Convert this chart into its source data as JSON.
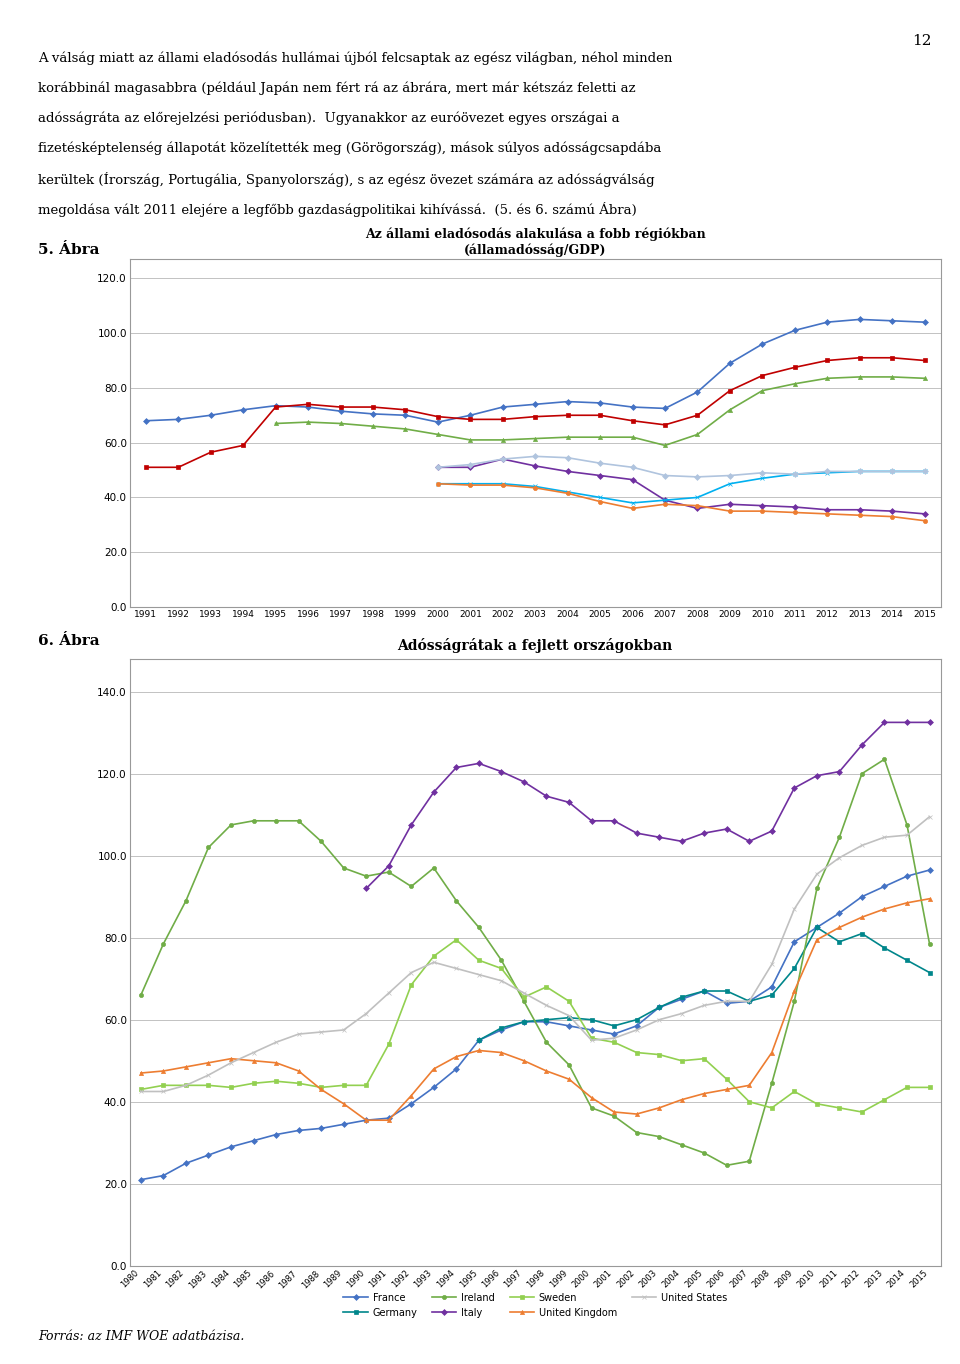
{
  "page_number": "12",
  "chart1_title": "Az állami eladósodás alakulása a fobb régiókban",
  "chart1_subtitle": "(államadósság/GDP)",
  "chart1_years": [
    1991,
    1992,
    1993,
    1994,
    1995,
    1996,
    1997,
    1998,
    1999,
    2000,
    2001,
    2002,
    2003,
    2004,
    2005,
    2006,
    2007,
    2008,
    2009,
    2010,
    2011,
    2012,
    2013,
    2014,
    2015
  ],
  "c1_advanced": [
    68.0,
    68.5,
    70.0,
    72.0,
    73.5,
    73.0,
    71.5,
    70.5,
    70.0,
    67.5,
    70.0,
    73.0,
    74.0,
    75.0,
    74.5,
    73.0,
    72.5,
    78.5,
    89.0,
    96.0,
    101.0,
    104.0,
    105.0,
    104.5,
    104.0
  ],
  "c1_euroarea": [
    51.0,
    51.0,
    56.5,
    59.0,
    73.0,
    74.0,
    73.0,
    73.0,
    72.0,
    69.5,
    68.5,
    68.5,
    69.5,
    70.0,
    70.0,
    68.0,
    66.5,
    70.0,
    79.0,
    84.5,
    87.5,
    90.0,
    91.0,
    91.0,
    90.0
  ],
  "c1_eu": [
    null,
    null,
    null,
    null,
    67.0,
    67.5,
    67.0,
    66.0,
    65.0,
    63.0,
    61.0,
    61.0,
    61.5,
    62.0,
    62.0,
    62.0,
    59.0,
    63.0,
    72.0,
    79.0,
    81.5,
    83.5,
    84.0,
    84.0,
    83.5
  ],
  "c1_emerging": [
    null,
    null,
    null,
    null,
    null,
    null,
    null,
    null,
    null,
    51.0,
    51.0,
    54.0,
    51.5,
    49.5,
    48.0,
    46.5,
    39.0,
    36.0,
    37.5,
    37.0,
    36.5,
    35.5,
    35.5,
    35.0,
    34.0
  ],
  "c1_cee": [
    null,
    null,
    null,
    null,
    null,
    null,
    null,
    null,
    null,
    45.0,
    45.0,
    45.0,
    44.0,
    42.0,
    40.0,
    38.0,
    39.0,
    40.0,
    45.0,
    47.0,
    48.5,
    49.0,
    49.5,
    49.5,
    49.5
  ],
  "c1_devasia": [
    null,
    null,
    null,
    null,
    null,
    null,
    null,
    null,
    null,
    45.0,
    44.5,
    44.5,
    43.5,
    41.5,
    38.5,
    36.0,
    37.5,
    37.0,
    35.0,
    35.0,
    34.5,
    34.0,
    33.5,
    33.0,
    31.5
  ],
  "c1_latam": [
    null,
    null,
    null,
    null,
    null,
    null,
    null,
    null,
    null,
    51.0,
    52.0,
    54.0,
    55.0,
    54.5,
    52.5,
    51.0,
    48.0,
    47.5,
    48.0,
    49.0,
    48.5,
    49.5,
    49.5,
    49.5,
    49.5
  ],
  "chart2_title": "Adósságrátak a fejlett országokban",
  "chart2_years": [
    1980,
    1981,
    1982,
    1983,
    1984,
    1985,
    1986,
    1987,
    1988,
    1989,
    1990,
    1991,
    1992,
    1993,
    1994,
    1995,
    1996,
    1997,
    1998,
    1999,
    2000,
    2001,
    2002,
    2003,
    2004,
    2005,
    2006,
    2007,
    2008,
    2009,
    2010,
    2011,
    2012,
    2013,
    2014,
    2015
  ],
  "c2_france": [
    21.0,
    22.0,
    25.0,
    27.0,
    29.0,
    30.5,
    32.0,
    33.0,
    33.5,
    34.5,
    35.5,
    36.0,
    39.5,
    43.5,
    48.0,
    55.0,
    57.5,
    59.5,
    59.5,
    58.5,
    57.5,
    56.5,
    58.5,
    63.0,
    65.0,
    67.0,
    64.0,
    64.5,
    68.0,
    79.0,
    82.5,
    86.0,
    90.0,
    92.5,
    95.0,
    96.5
  ],
  "c2_germany": [
    null,
    null,
    null,
    null,
    null,
    null,
    null,
    null,
    null,
    null,
    null,
    null,
    null,
    null,
    null,
    55.0,
    58.0,
    59.5,
    60.0,
    60.5,
    60.0,
    58.5,
    60.0,
    63.0,
    65.5,
    67.0,
    67.0,
    64.5,
    66.0,
    72.5,
    82.5,
    79.0,
    81.0,
    77.5,
    74.5,
    71.5
  ],
  "c2_ireland": [
    66.0,
    78.5,
    89.0,
    102.0,
    107.5,
    108.5,
    108.5,
    108.5,
    103.5,
    97.0,
    95.0,
    96.0,
    92.5,
    97.0,
    89.0,
    82.5,
    74.5,
    64.5,
    54.5,
    49.0,
    38.5,
    36.5,
    32.5,
    31.5,
    29.5,
    27.5,
    24.5,
    25.5,
    44.5,
    64.5,
    92.0,
    104.5,
    120.0,
    123.5,
    107.5,
    78.5
  ],
  "c2_italy": [
    null,
    null,
    null,
    null,
    null,
    null,
    null,
    null,
    null,
    null,
    92.0,
    97.5,
    107.5,
    115.5,
    121.5,
    122.5,
    120.5,
    118.0,
    114.5,
    113.0,
    108.5,
    108.5,
    105.5,
    104.5,
    103.5,
    105.5,
    106.5,
    103.5,
    106.0,
    116.5,
    119.5,
    120.5,
    127.0,
    132.5,
    132.5,
    132.5
  ],
  "c2_sweden": [
    43.0,
    44.0,
    44.0,
    44.0,
    43.5,
    44.5,
    45.0,
    44.5,
    43.5,
    44.0,
    44.0,
    54.0,
    68.5,
    75.5,
    79.5,
    74.5,
    72.5,
    65.5,
    68.0,
    64.5,
    55.5,
    54.5,
    52.0,
    51.5,
    50.0,
    50.5,
    45.5,
    40.0,
    38.5,
    42.5,
    39.5,
    38.5,
    37.5,
    40.5,
    43.5,
    43.5
  ],
  "c2_uk": [
    47.0,
    47.5,
    48.5,
    49.5,
    50.5,
    50.0,
    49.5,
    47.5,
    43.0,
    39.5,
    35.5,
    35.5,
    41.5,
    48.0,
    51.0,
    52.5,
    52.0,
    50.0,
    47.5,
    45.5,
    41.0,
    37.5,
    37.0,
    38.5,
    40.5,
    42.0,
    43.0,
    44.0,
    52.0,
    67.0,
    79.5,
    82.5,
    85.0,
    87.0,
    88.5,
    89.5
  ],
  "c2_us": [
    42.5,
    42.5,
    44.0,
    46.5,
    49.5,
    52.0,
    54.5,
    56.5,
    57.0,
    57.5,
    61.5,
    66.5,
    71.5,
    74.0,
    72.5,
    71.0,
    69.5,
    66.5,
    63.5,
    61.0,
    55.0,
    55.5,
    57.5,
    60.0,
    61.5,
    63.5,
    64.5,
    64.5,
    73.5,
    87.0,
    95.5,
    99.5,
    102.5,
    104.5,
    105.0,
    109.5
  ],
  "footer_text": "Forrás: az IMF WOE adatbázisa.",
  "fig_label1": "5. Ábra",
  "fig_label2": "6. Ábra",
  "col_advanced": "#4472C4",
  "col_euroarea": "#C00000",
  "col_eu": "#70AD47",
  "col_emerging": "#7030A0",
  "col_cee": "#00B0F0",
  "col_devasia": "#ED7D31",
  "col_latam": "#B0C4DE",
  "col_france": "#4472C4",
  "col_germany": "#00868B",
  "col_ireland": "#70AD47",
  "col_italy": "#7030A0",
  "col_sweden": "#92D050",
  "col_uk": "#ED7D31",
  "col_us": "#C0C0C0"
}
